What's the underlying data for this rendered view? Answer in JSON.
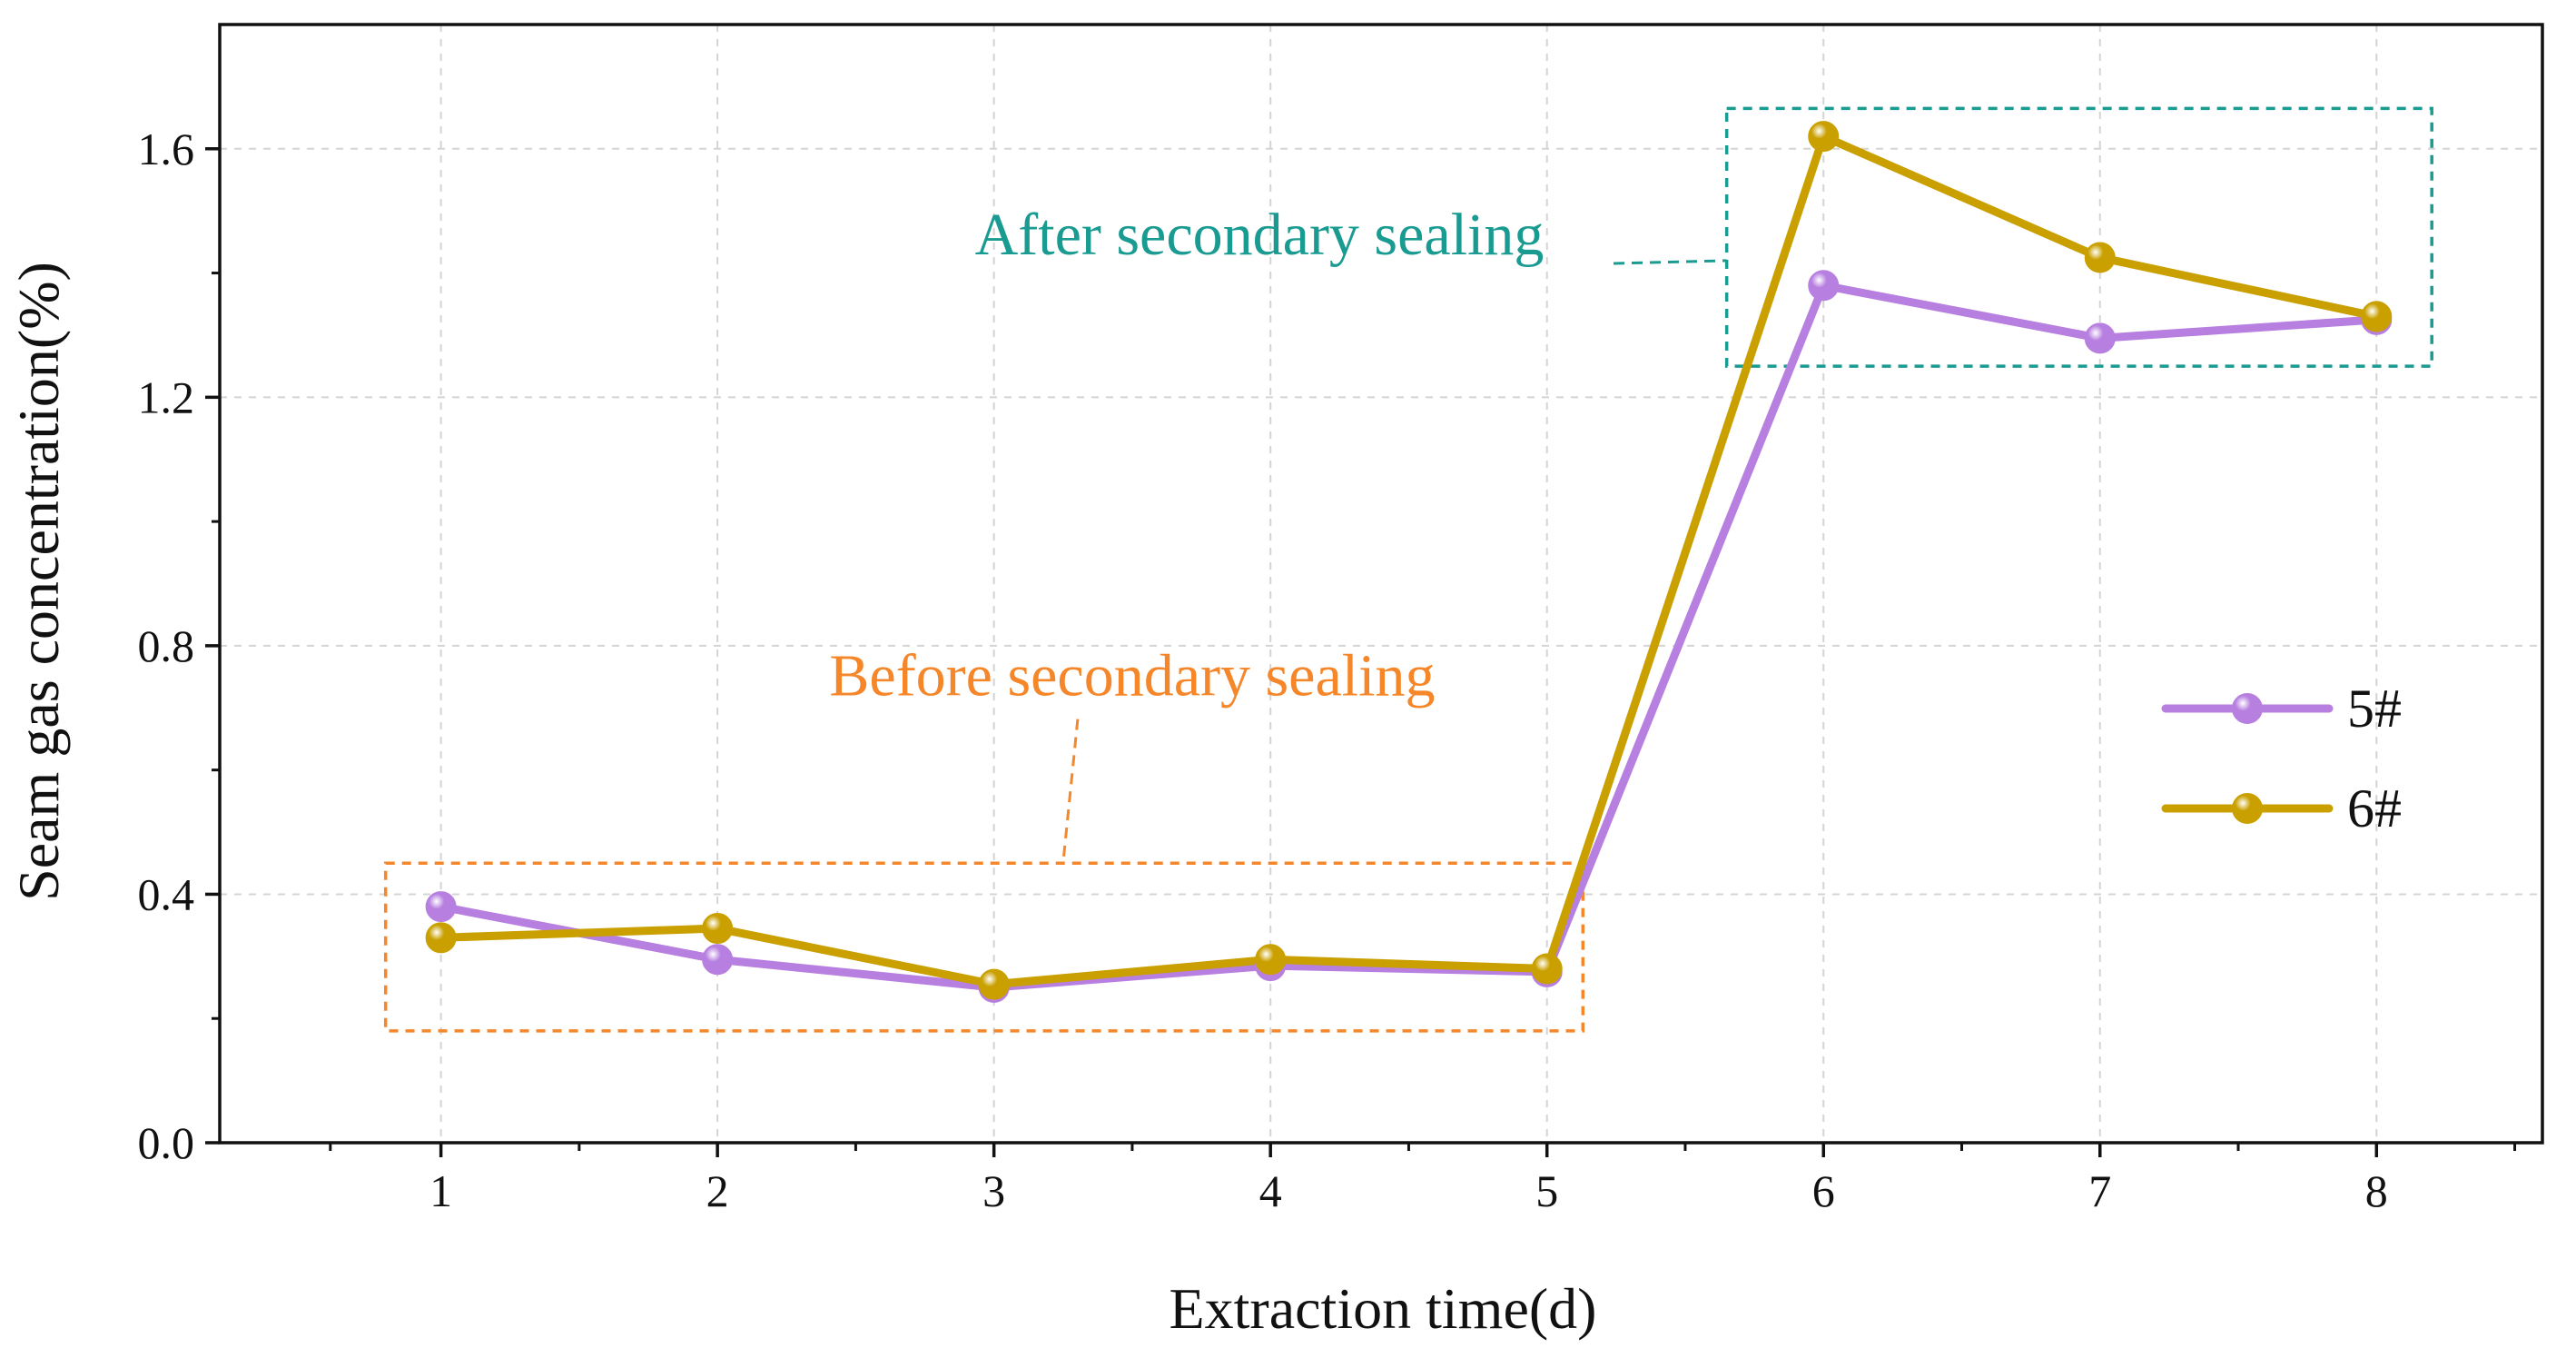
{
  "chart_data": {
    "type": "line",
    "title": "",
    "xlabel": "Extraction time(d)",
    "ylabel": "Seam gas concentration(%)",
    "x": [
      1,
      2,
      3,
      4,
      5,
      6,
      7,
      8
    ],
    "xtick_labels": [
      "1",
      "2",
      "3",
      "4",
      "5",
      "6",
      "7",
      "8"
    ],
    "xlim": [
      0.2,
      8.6
    ],
    "ylim": [
      0.0,
      1.8
    ],
    "yticks": [
      0.0,
      0.4,
      0.8,
      1.2,
      1.6
    ],
    "ytick_labels": [
      "0.0",
      "0.4",
      "0.8",
      "1.2",
      "1.6"
    ],
    "grid": true,
    "legend_position": "right-middle",
    "series": [
      {
        "name": "5#",
        "color": "#b77fe0",
        "values": [
          0.38,
          0.295,
          0.25,
          0.285,
          0.275,
          1.38,
          1.295,
          1.325
        ]
      },
      {
        "name": "6#",
        "color": "#c9a000",
        "values": [
          0.33,
          0.345,
          0.255,
          0.295,
          0.28,
          1.62,
          1.425,
          1.33
        ]
      }
    ],
    "annotations": [
      {
        "text": "Before secondary sealing",
        "color": "#f5872a",
        "box_x": [
          0.8,
          5.13
        ],
        "box_y": [
          0.18,
          0.45
        ],
        "label_anchor": [
          3.5,
          0.72
        ],
        "leader_end": [
          3.25,
          0.45
        ]
      },
      {
        "text": "After secondary sealing",
        "color": "#1a9b91",
        "box_x": [
          5.65,
          8.2
        ],
        "box_y": [
          1.25,
          1.665
        ],
        "label_anchor": [
          3.96,
          1.43
        ],
        "leader_end": [
          5.65,
          1.42
        ]
      }
    ]
  }
}
